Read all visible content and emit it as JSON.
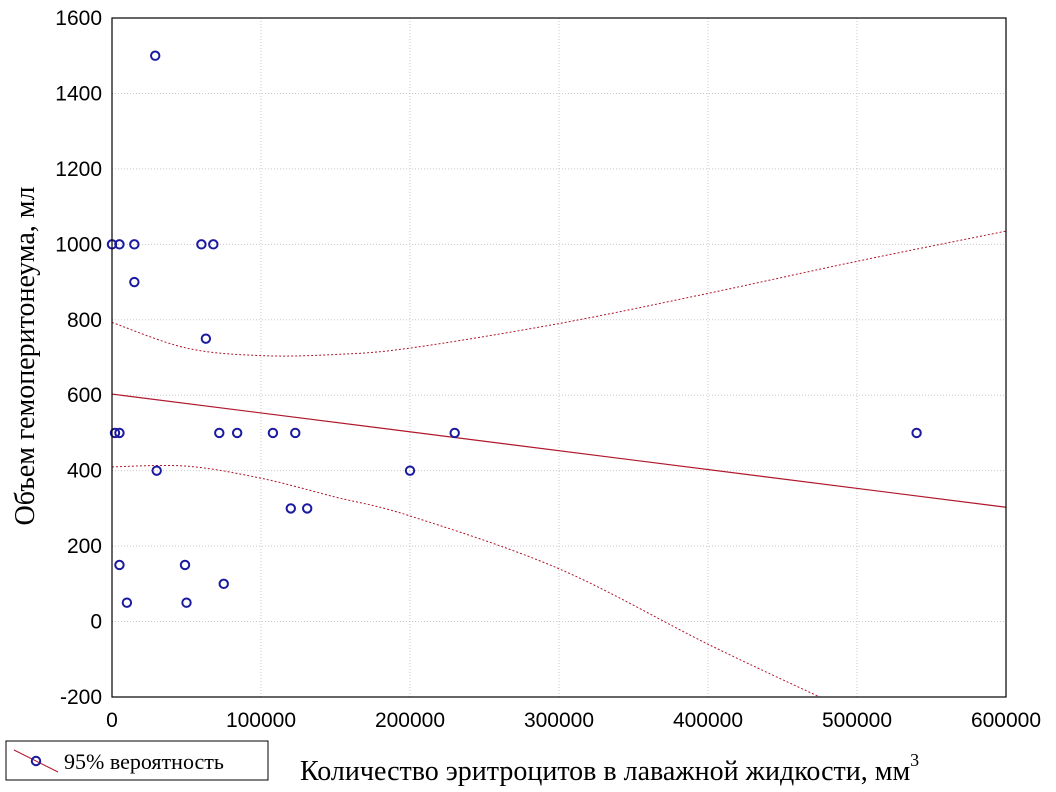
{
  "chart_data": {
    "type": "scatter",
    "xlabel": "Количество эритроцитов в лаважной жидкости, мм",
    "xlabel_superscript": "3",
    "ylabel": "Объем гемоперитонеума, мл",
    "xlim": [
      0,
      600000
    ],
    "ylim": [
      -200,
      1600
    ],
    "x_ticks": [
      0,
      100000,
      200000,
      300000,
      400000,
      500000,
      600000
    ],
    "y_ticks": [
      -200,
      0,
      200,
      400,
      600,
      800,
      1000,
      1200,
      1400,
      1600
    ],
    "grid": true,
    "legend": {
      "label": "95% вероятность",
      "placement": "bottom-left"
    },
    "colors": {
      "points": "#1a1aa0",
      "fit": "#b0162b",
      "grid": "#c8c8c8"
    },
    "points": [
      {
        "x": 0,
        "y": 1000
      },
      {
        "x": 5000,
        "y": 1000
      },
      {
        "x": 15000,
        "y": 1000
      },
      {
        "x": 15000,
        "y": 900
      },
      {
        "x": 29000,
        "y": 1500
      },
      {
        "x": 60000,
        "y": 1000
      },
      {
        "x": 68000,
        "y": 1000
      },
      {
        "x": 63000,
        "y": 750
      },
      {
        "x": 2000,
        "y": 500
      },
      {
        "x": 5000,
        "y": 500
      },
      {
        "x": 72000,
        "y": 500
      },
      {
        "x": 84000,
        "y": 500
      },
      {
        "x": 108000,
        "y": 500
      },
      {
        "x": 123000,
        "y": 500
      },
      {
        "x": 230000,
        "y": 500
      },
      {
        "x": 540000,
        "y": 500
      },
      {
        "x": 30000,
        "y": 400
      },
      {
        "x": 200000,
        "y": 400
      },
      {
        "x": 120000,
        "y": 300
      },
      {
        "x": 131000,
        "y": 300
      },
      {
        "x": 5000,
        "y": 150
      },
      {
        "x": 49000,
        "y": 150
      },
      {
        "x": 75000,
        "y": 100
      },
      {
        "x": 10000,
        "y": 50
      },
      {
        "x": 50000,
        "y": 50
      }
    ],
    "fit_line": [
      [
        0,
        603
      ],
      [
        600000,
        303
      ]
    ],
    "upper_band": [
      [
        0,
        793
      ],
      [
        50000,
        725
      ],
      [
        100000,
        705
      ],
      [
        150000,
        708
      ],
      [
        200000,
        725
      ],
      [
        300000,
        790
      ],
      [
        400000,
        870
      ],
      [
        500000,
        955
      ],
      [
        600000,
        1035
      ]
    ],
    "lower_band": [
      [
        0,
        410
      ],
      [
        50000,
        412
      ],
      [
        100000,
        380
      ],
      [
        150000,
        330
      ],
      [
        200000,
        280
      ],
      [
        300000,
        140
      ],
      [
        400000,
        -60
      ],
      [
        475000,
        -200
      ]
    ]
  }
}
